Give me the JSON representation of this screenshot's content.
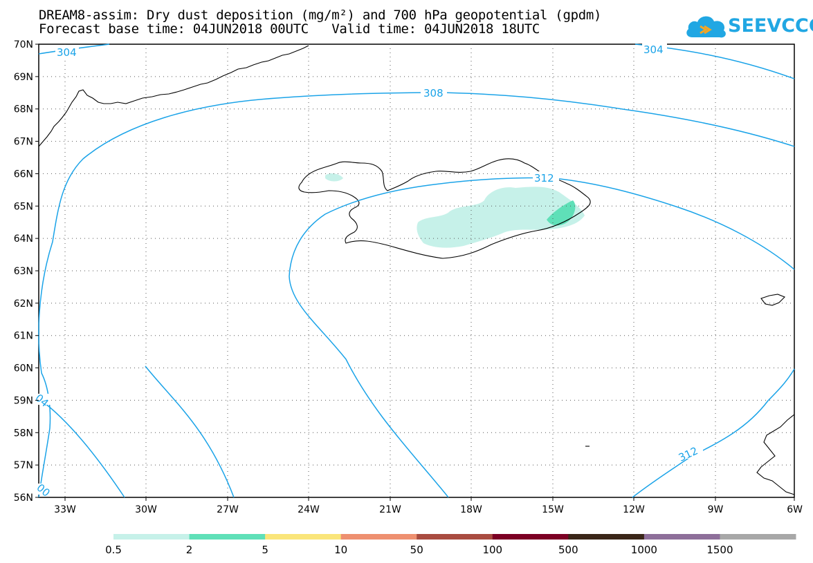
{
  "header": {
    "title_line1": "DREAM8-assim: Dry dust deposition (mg/m²) and 700 hPa geopotential (gpdm)",
    "title_line2": "Forecast base time: 04JUN2018 00UTC   Valid time: 04JUN2018 18UTC"
  },
  "logo": {
    "text": "SEEVCCC",
    "icon": "cloud-icon",
    "color": "#21a7e3"
  },
  "map": {
    "latitude_labels": [
      "70N",
      "69N",
      "68N",
      "67N",
      "66N",
      "65N",
      "64N",
      "63N",
      "62N",
      "61N",
      "60N",
      "59N",
      "58N",
      "57N",
      "56N"
    ],
    "longitude_labels": [
      "33W",
      "30W",
      "27W",
      "24W",
      "21W",
      "18W",
      "15W",
      "12W",
      "9W",
      "6W"
    ],
    "contour_color": "#1aa3e8",
    "contour_labels": [
      "304",
      "304",
      "308",
      "312",
      "312",
      "04",
      "00"
    ],
    "deposition_colors": {
      "low": "#c6f1e9",
      "mid": "#5fe0b8"
    }
  },
  "colorbar": {
    "labels": [
      "0.5",
      "2",
      "5",
      "10",
      "50",
      "100",
      "500",
      "1000",
      "1500"
    ],
    "colors": [
      "#c6f1e9",
      "#5fe0b8",
      "#fae57a",
      "#ee9070",
      "#a94c40",
      "#7c0024",
      "#3a2618",
      "#8e6f9a",
      "#a8a8a8"
    ]
  }
}
